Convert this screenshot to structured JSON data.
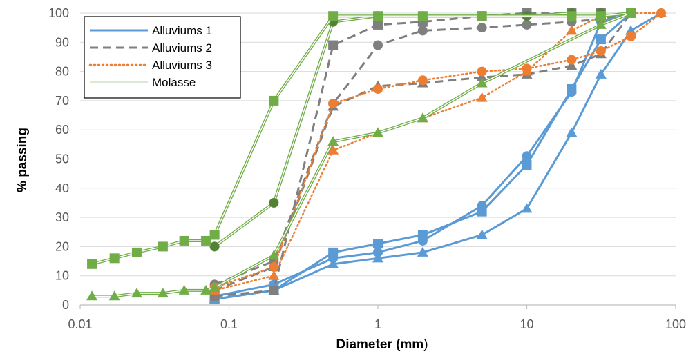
{
  "chart_data": {
    "type": "scatter",
    "xscale": "log",
    "xlim": [
      0.01,
      100
    ],
    "ylim": [
      0,
      100
    ],
    "xlabel": {
      "bold": "Diameter (mm",
      "normal": ")"
    },
    "ylabel": "% passing",
    "xticks": [
      "0.01",
      "0.1",
      "1",
      "10",
      "100"
    ],
    "yticks": [
      "0",
      "10",
      "20",
      "30",
      "40",
      "50",
      "60",
      "70",
      "80",
      "90",
      "100"
    ],
    "grid": "horizontal",
    "legend": {
      "placement": "top-left",
      "entries": [
        {
          "name": "Alluviums 1",
          "style": "solid"
        },
        {
          "name": "Alluviums 2",
          "style": "dashed"
        },
        {
          "name": "Alluviums 3",
          "style": "dotted"
        },
        {
          "name": "Molasse",
          "style": "double"
        }
      ]
    },
    "colors": {
      "alluviums1": "#5b9bd5",
      "alluviums2": "#7f7f7f",
      "alluviums3": "#ed7d31",
      "molasse": "#70ad47",
      "molasse_dark": "#548235"
    },
    "series": [
      {
        "group": "Alluviums 1",
        "marker": "circle",
        "x": [
          0.08,
          0.2,
          0.5,
          1,
          2,
          5,
          10,
          20,
          31.5,
          50
        ],
        "y": [
          3,
          7,
          16,
          18,
          22,
          34,
          51,
          73,
          97,
          100
        ]
      },
      {
        "group": "Alluviums 1",
        "marker": "square",
        "x": [
          0.08,
          0.2,
          0.5,
          1,
          2,
          5,
          10,
          20,
          31.5,
          50
        ],
        "y": [
          2,
          5,
          18,
          21,
          24,
          32,
          48,
          74,
          91,
          100
        ]
      },
      {
        "group": "Alluviums 1",
        "marker": "triangle",
        "x": [
          0.08,
          0.2,
          0.5,
          1,
          2,
          5,
          10,
          20,
          31.5,
          50,
          80
        ],
        "y": [
          2,
          5,
          14,
          16,
          18,
          24,
          33,
          59,
          79,
          94,
          100
        ]
      },
      {
        "group": "Alluviums 2",
        "marker": "circle",
        "x": [
          0.08,
          0.2,
          0.5,
          1,
          2,
          5,
          10,
          20,
          31.5,
          50
        ],
        "y": [
          7,
          15,
          69,
          89,
          94,
          95,
          96,
          97,
          98,
          100
        ]
      },
      {
        "group": "Alluviums 2",
        "marker": "square",
        "x": [
          0.08,
          0.2,
          0.5,
          1,
          2,
          5,
          10,
          20,
          31.5,
          50
        ],
        "y": [
          3,
          5,
          89,
          96,
          97,
          99,
          100,
          100,
          100,
          100
        ]
      },
      {
        "group": "Alluviums 2",
        "marker": "triangle",
        "x": [
          0.08,
          0.2,
          0.5,
          1,
          2,
          5,
          10,
          20,
          31.5,
          50
        ],
        "y": [
          5,
          13,
          68,
          75,
          76,
          78,
          79,
          82,
          86,
          100
        ]
      },
      {
        "group": "Alluviums 3",
        "marker": "circle",
        "x": [
          0.08,
          0.2,
          0.5,
          1,
          2,
          5,
          10,
          20,
          31.5,
          50,
          80
        ],
        "y": [
          6,
          13,
          69,
          74,
          77,
          80,
          81,
          84,
          87,
          92,
          100
        ]
      },
      {
        "group": "Alluviums 3",
        "marker": "triangle",
        "x": [
          0.08,
          0.2,
          0.5,
          1,
          2,
          5,
          10,
          20,
          31.5,
          50,
          80
        ],
        "y": [
          5,
          10,
          53,
          59,
          64,
          71,
          80,
          94,
          99,
          100,
          100
        ]
      },
      {
        "group": "Molasse",
        "marker": "circle",
        "x": [
          0.08,
          0.2,
          0.5,
          1,
          2,
          5,
          10,
          20,
          31.5,
          50
        ],
        "y": [
          20,
          35,
          97,
          99,
          99,
          99,
          99,
          100,
          100,
          100
        ]
      },
      {
        "group": "Molasse",
        "marker": "square",
        "x": [
          0.012,
          0.017,
          0.024,
          0.036,
          0.05,
          0.07,
          0.08,
          0.2,
          0.5,
          1,
          2,
          5,
          20,
          31.5,
          50
        ],
        "y": [
          14,
          16,
          18,
          20,
          22,
          22,
          24,
          70,
          99,
          99,
          99,
          99,
          99,
          99,
          100
        ]
      },
      {
        "group": "Molasse",
        "marker": "triangle",
        "x": [
          0.012,
          0.017,
          0.024,
          0.036,
          0.05,
          0.07,
          0.08,
          0.2,
          0.5,
          1,
          2,
          5,
          31.5,
          50
        ],
        "y": [
          3,
          3,
          4,
          4,
          5,
          5,
          6,
          17,
          56,
          59,
          64,
          76,
          96,
          100
        ]
      }
    ]
  }
}
